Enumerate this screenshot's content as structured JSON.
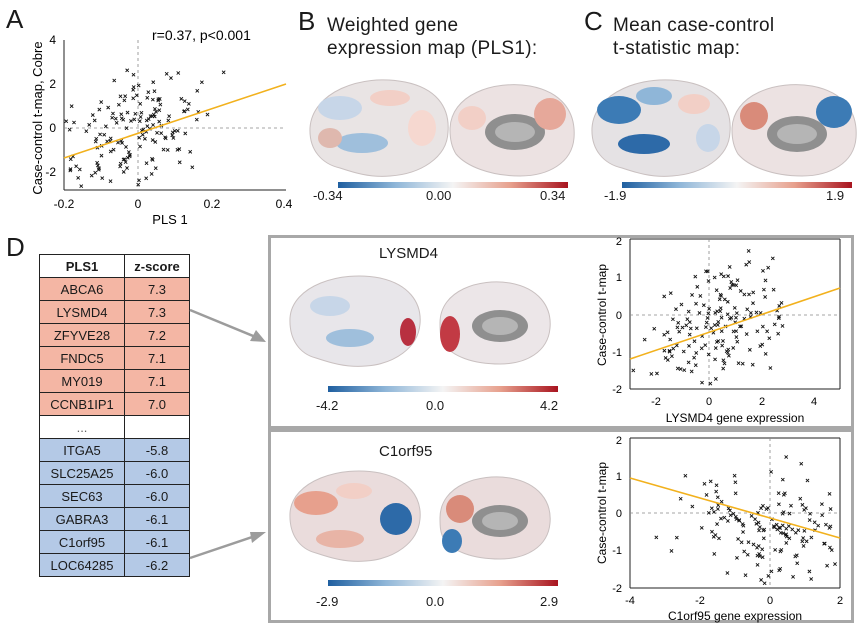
{
  "panels": {
    "A": {
      "letter": "A",
      "annotation": "r=0.37, p<0.001",
      "xlabel": "PLS 1",
      "ylabel": "Case-control t-map, Cobre",
      "xticks": [
        "-0.2",
        "0",
        "0.2",
        "0.4"
      ],
      "yticks": [
        "4",
        "2",
        "0",
        "-2"
      ]
    },
    "B": {
      "letter": "B",
      "title_line1": "Weighted gene",
      "title_line2": "expression map (PLS1):",
      "cbar_min": "-0.34",
      "cbar_mid": "0.00",
      "cbar_max": "0.34"
    },
    "C": {
      "letter": "C",
      "title_line1": "Mean case-control",
      "title_line2": "t-statistic map:",
      "cbar_min": "-1.9",
      "cbar_max": "1.9"
    },
    "D": {
      "letter": "D",
      "table_header": [
        "PLS1",
        "z-score"
      ],
      "positive_rows": [
        [
          "ABCA6",
          "7.3"
        ],
        [
          "LYSMD4",
          "7.3"
        ],
        [
          "ZFYVE28",
          "7.2"
        ],
        [
          "FNDC5",
          "7.1"
        ],
        [
          "MY019",
          "7.1"
        ],
        [
          "CCNB1IP1",
          "7.0"
        ]
      ],
      "ellipsis": "...",
      "negative_rows": [
        [
          "ITGA5",
          "-5.8"
        ],
        [
          "SLC25A25",
          "-6.0"
        ],
        [
          "SEC63",
          "-6.0"
        ],
        [
          "GABRA3",
          "-6.1"
        ],
        [
          "C1orf95",
          "-6.1"
        ],
        [
          "LOC64285",
          "-6.2"
        ]
      ],
      "gene1": {
        "name": "LYSMD4",
        "cbar_min": "-4.2",
        "cbar_mid": "0.0",
        "cbar_max": "4.2",
        "xlabel": "LYSMD4 gene expression",
        "ylabel": "Case-control t-map",
        "xticks": [
          "-2",
          "0",
          "2",
          "4"
        ],
        "yticks": [
          "2",
          "1",
          "0",
          "-1",
          "-2"
        ]
      },
      "gene2": {
        "name": "C1orf95",
        "cbar_min": "-2.9",
        "cbar_mid": "0.0",
        "cbar_max": "2.9",
        "xlabel": "C1orf95 gene expression",
        "ylabel": "Case-control t-map",
        "xticks": [
          "-4",
          "-2",
          "0",
          "2"
        ],
        "yticks": [
          "2",
          "1",
          "0",
          "-1",
          "-2"
        ]
      }
    }
  },
  "colors": {
    "fit_line": "#f2b11d",
    "negative": "#1f5fa0",
    "positive": "#a8141f",
    "table_pos": "#f4b6a4",
    "table_neg": "#b4c9e6"
  },
  "chart_data": [
    {
      "type": "scatter",
      "panel": "A",
      "xlim": [
        -0.2,
        0.4
      ],
      "ylim": [
        -3,
        4
      ],
      "fit": {
        "slope": 7.5,
        "intercept": 0
      },
      "x_axis_zero_dashed": true,
      "y_axis_zero_dashed": true
    },
    {
      "type": "scatter",
      "panel": "D-LYSMD4",
      "xlim": [
        -3,
        5
      ],
      "ylim": [
        -2,
        2
      ],
      "fit": {
        "slope": 0.3,
        "intercept": -0.2
      }
    },
    {
      "type": "scatter",
      "panel": "D-C1orf95",
      "xlim": [
        -4,
        2
      ],
      "ylim": [
        -2,
        2
      ],
      "fit": {
        "slope": -0.27,
        "intercept": -0.35
      }
    }
  ]
}
